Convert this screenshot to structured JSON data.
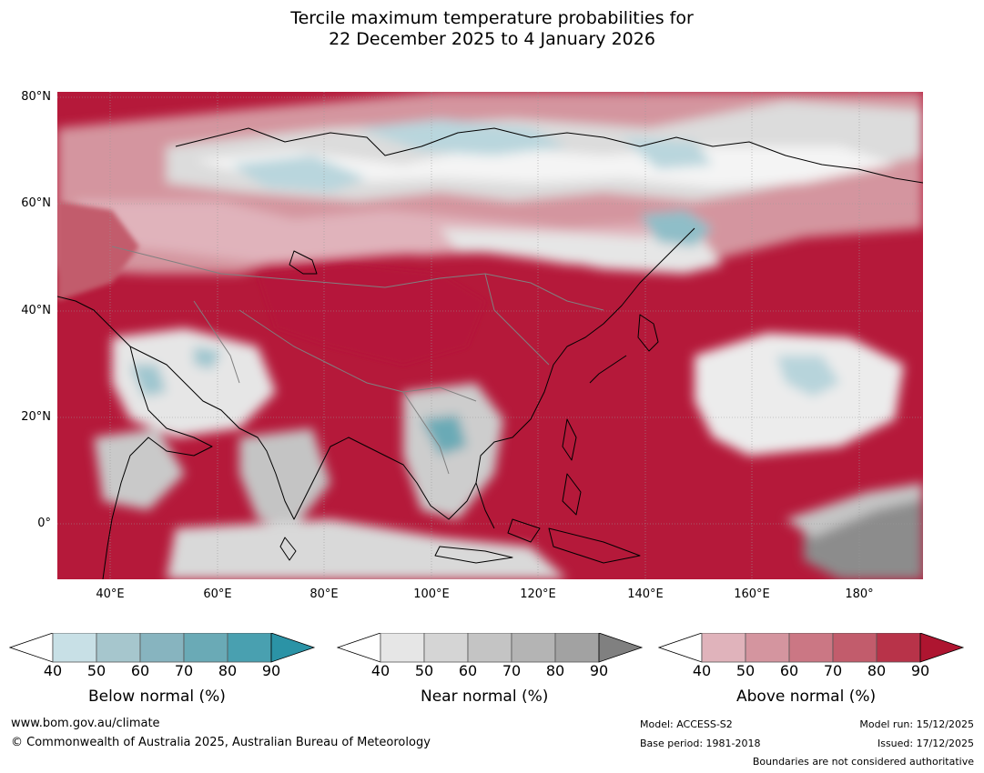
{
  "title": {
    "line1": "Tercile maximum temperature probabilities for",
    "line2": "22 December 2025 to 4 January 2026"
  },
  "map": {
    "region": "Asia and western Pacific",
    "latitude_labels": [
      "80°N",
      "60°N",
      "40°N",
      "20°N",
      "0°"
    ],
    "longitude_labels": [
      "40°E",
      "60°E",
      "80°E",
      "100°E",
      "120°E",
      "140°E",
      "160°E",
      "180°"
    ],
    "lat_range": [
      -10,
      80
    ],
    "lon_range": [
      30,
      192
    ],
    "colors": {
      "ocean_above_90": "#b5193a",
      "land_above": "#c9556a",
      "near_normal": "#cfcfcf",
      "below_normal": "#a8cad4",
      "coastline": "#000000",
      "borders": "#808080"
    }
  },
  "colorbars": [
    {
      "title": "Below normal (%)",
      "ticks": [
        "40",
        "50",
        "60",
        "70",
        "80",
        "90"
      ],
      "colors": [
        "#ffffff",
        "#c8e0e6",
        "#a6c6cd",
        "#87b4bf",
        "#6aaab6",
        "#49a0b0",
        "#2b93a6"
      ]
    },
    {
      "title": "Near normal (%)",
      "ticks": [
        "40",
        "50",
        "60",
        "70",
        "80",
        "90"
      ],
      "colors": [
        "#ffffff",
        "#e6e6e6",
        "#d5d5d5",
        "#c4c4c4",
        "#b4b4b4",
        "#a2a2a2",
        "#808080"
      ]
    },
    {
      "title": "Above normal (%)",
      "ticks": [
        "40",
        "50",
        "60",
        "70",
        "80",
        "90"
      ],
      "colors": [
        "#ffffff",
        "#e0b3bb",
        "#d4959f",
        "#cb7784",
        "#c25c6c",
        "#b83349",
        "#ae1530"
      ]
    }
  ],
  "footer": {
    "website": "www.bom.gov.au/climate",
    "copyright": "© Commonwealth of Australia 2025, Australian Bureau of Meteorology",
    "model": "Model: ACCESS-S2",
    "base_period": "Base period: 1981-2018",
    "model_run": "Model run: 15/12/2025",
    "issued": "Issued: 17/12/2025",
    "disclaimer": "Boundaries are not considered authoritative"
  }
}
